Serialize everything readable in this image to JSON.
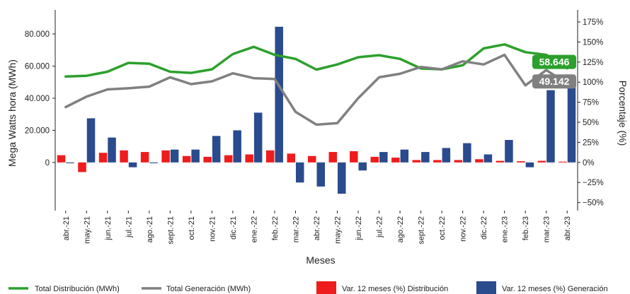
{
  "chart_data": {
    "type": "bar+line",
    "xlabel": "Meses",
    "ylabel_left": "Mega Watts hora (MWh)",
    "ylabel_right": "Porcentaje (%)",
    "categories": [
      "abr.-21",
      "may.-21",
      "jun.-21",
      "jul.-21",
      "ago.-21",
      "sept.-21",
      "oct.-21",
      "nov.-21",
      "dic.-21",
      "ene.-22",
      "feb.-22",
      "mar.-22",
      "abr.-22",
      "may.-22",
      "jun.-22",
      "jul.-22",
      "ago.-22",
      "sept.-22",
      "oct.-22",
      "nov.-22",
      "dic.-22",
      "ene.-23",
      "feb.-23",
      "mar.-23",
      "abr.-23"
    ],
    "left_axis": {
      "ylim": [
        -30000,
        95000
      ],
      "ticks": [
        0,
        20000,
        40000,
        60000,
        80000
      ],
      "tick_labels": [
        "0",
        "20.000",
        "40.000",
        "60.000",
        "80.000"
      ]
    },
    "right_axis": {
      "ylim": [
        -60,
        190
      ],
      "ticks": [
        -50,
        -25,
        0,
        25,
        50,
        75,
        100,
        125,
        150,
        175
      ],
      "tick_labels": [
        "−50%",
        "−25%",
        "0%",
        "25%",
        "50%",
        "75%",
        "100%",
        "125%",
        "150%",
        "175%"
      ]
    },
    "lines": [
      {
        "name": "Total Distribución (MWh)",
        "color": "#2ca02c",
        "values": [
          53500,
          54000,
          56500,
          62000,
          61500,
          56500,
          55800,
          58000,
          67500,
          72000,
          67000,
          64500,
          57800,
          61000,
          65500,
          66800,
          64500,
          58500,
          58000,
          60500,
          71000,
          73500,
          68700,
          67000,
          58646
        ],
        "end_label": "58.646"
      },
      {
        "name": "Total Generación (MWh)",
        "color": "#808080",
        "values": [
          34500,
          41000,
          45500,
          46200,
          47200,
          53000,
          48800,
          50500,
          55500,
          52500,
          52000,
          31500,
          23500,
          24500,
          40000,
          53000,
          55200,
          59500,
          58000,
          63000,
          61000,
          67000,
          48000,
          57500,
          49142
        ],
        "end_label": "49.142"
      }
    ],
    "bars": [
      {
        "name": "Var. 12 meses (%) Distribución",
        "color": "#ee1c1c",
        "values": [
          9,
          -12,
          12,
          15,
          13,
          15,
          8,
          7,
          9,
          10,
          15,
          11,
          8,
          13,
          14,
          7,
          6,
          3,
          3,
          3,
          4,
          2,
          1.5,
          2,
          1
        ]
      },
      {
        "name": "Var. 12 meses (%) Generación",
        "color": "#2a4b8d",
        "values": [
          -1,
          55,
          31,
          -6,
          -1,
          16,
          16,
          33,
          40,
          62,
          169,
          -25,
          -30,
          -39,
          -10,
          13,
          16,
          13,
          18,
          24,
          10,
          28,
          -6,
          90,
          106
        ]
      }
    ],
    "legend_position": "bottom",
    "grid": false
  }
}
